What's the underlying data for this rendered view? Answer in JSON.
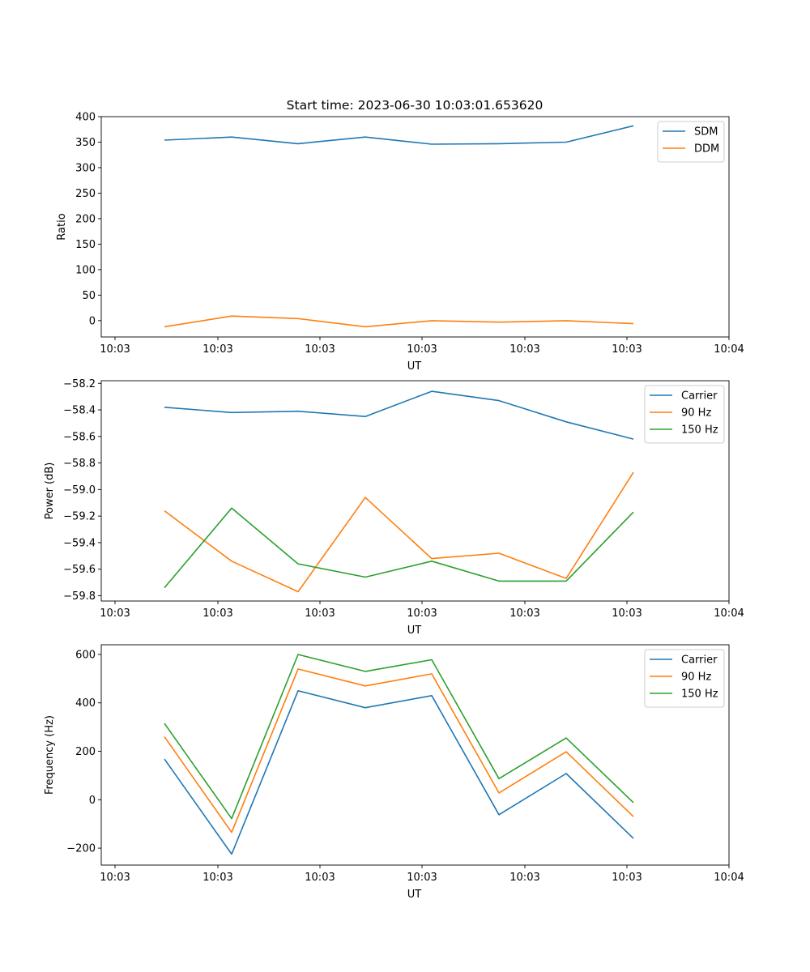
{
  "figure_title": "Start time: 2023-06-30 10:03:01.653620",
  "colors": {
    "blue": "#1f77b4",
    "orange": "#ff7f0e",
    "green": "#2ca02c"
  },
  "chart_data": [
    {
      "type": "line",
      "title": "Start time: 2023-06-30 10:03:01.653620",
      "xlabel": "UT",
      "ylabel": "Ratio",
      "x_tick_labels": [
        "10:03",
        "10:03",
        "10:03",
        "10:03",
        "10:03",
        "10:03",
        "10:04"
      ],
      "ylim": [
        -32,
        400
      ],
      "y_ticks": [
        0,
        50,
        100,
        150,
        200,
        250,
        300,
        350,
        400
      ],
      "y_tick_labels": [
        "0",
        "50",
        "100",
        "150",
        "200",
        "250",
        "300",
        "350",
        "400"
      ],
      "legend": "upper right",
      "grid": false,
      "series": [
        {
          "name": "SDM",
          "color": "#1f77b4",
          "values": [
            354,
            360,
            347,
            360,
            346,
            347,
            350,
            382
          ]
        },
        {
          "name": "DDM",
          "color": "#ff7f0e",
          "values": [
            -12,
            9,
            4,
            -12,
            0,
            -3,
            0,
            -6
          ]
        }
      ]
    },
    {
      "type": "line",
      "xlabel": "UT",
      "ylabel": "Power (dB)",
      "x_tick_labels": [
        "10:03",
        "10:03",
        "10:03",
        "10:03",
        "10:03",
        "10:03",
        "10:04"
      ],
      "ylim": [
        -59.84,
        -58.18
      ],
      "y_ticks": [
        -59.8,
        -59.6,
        -59.4,
        -59.2,
        -59.0,
        -58.8,
        -58.6,
        -58.4,
        -58.2
      ],
      "y_tick_labels": [
        "−59.8",
        "−59.6",
        "−59.4",
        "−59.2",
        "−59.0",
        "−58.8",
        "−58.6",
        "−58.4",
        "−58.2"
      ],
      "legend": "upper right",
      "grid": false,
      "series": [
        {
          "name": "Carrier",
          "color": "#1f77b4",
          "values": [
            -58.38,
            -58.42,
            -58.41,
            -58.45,
            -58.26,
            -58.33,
            -58.49,
            -58.62
          ]
        },
        {
          "name": "90 Hz",
          "color": "#ff7f0e",
          "values": [
            -59.16,
            -59.54,
            -59.77,
            -59.06,
            -59.52,
            -59.48,
            -59.67,
            -58.87
          ]
        },
        {
          "name": "150 Hz",
          "color": "#2ca02c",
          "values": [
            -59.74,
            -59.14,
            -59.56,
            -59.66,
            -59.54,
            -59.69,
            -59.69,
            -59.17
          ]
        }
      ]
    },
    {
      "type": "line",
      "xlabel": "UT",
      "ylabel": "Frequency (Hz)",
      "x_tick_labels": [
        "10:03",
        "10:03",
        "10:03",
        "10:03",
        "10:03",
        "10:03",
        "10:04"
      ],
      "ylim": [
        -270,
        640
      ],
      "y_ticks": [
        -200,
        0,
        200,
        400,
        600
      ],
      "y_tick_labels": [
        "−200",
        "0",
        "200",
        "400",
        "600"
      ],
      "legend": "upper right",
      "grid": false,
      "series": [
        {
          "name": "Carrier",
          "color": "#1f77b4",
          "values": [
            168,
            -225,
            450,
            380,
            430,
            -62,
            108,
            -160
          ]
        },
        {
          "name": "90 Hz",
          "color": "#ff7f0e",
          "values": [
            260,
            -135,
            540,
            470,
            520,
            28,
            198,
            -70
          ]
        },
        {
          "name": "150 Hz",
          "color": "#2ca02c",
          "values": [
            315,
            -78,
            600,
            530,
            578,
            87,
            255,
            -12
          ]
        }
      ]
    }
  ]
}
